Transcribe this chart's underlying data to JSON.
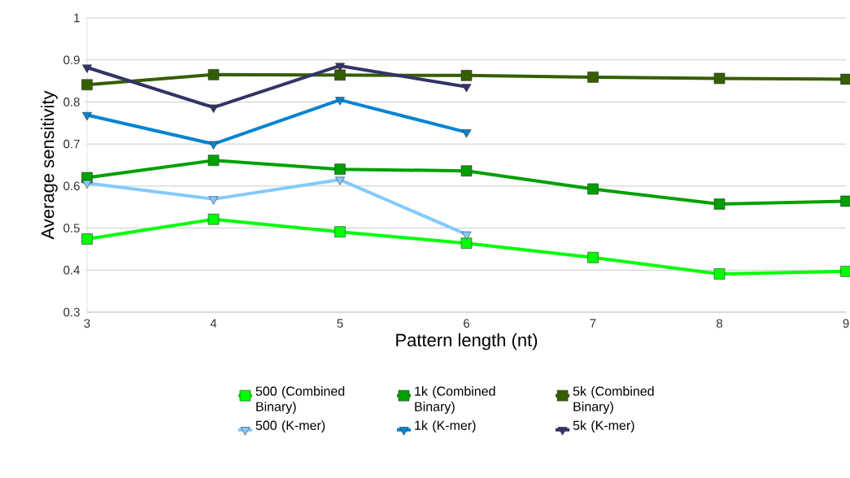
{
  "chart_data": {
    "type": "line",
    "xlabel": "Pattern length (nt)",
    "ylabel": "Average sensitivity",
    "x": [
      3,
      4,
      5,
      6,
      7,
      8,
      9
    ],
    "xlim": [
      3,
      9
    ],
    "xticks": [
      3,
      4,
      5,
      6,
      7,
      8,
      9
    ],
    "ylim": [
      0.3,
      1
    ],
    "yticks": [
      0.3,
      0.4,
      0.5,
      0.6,
      0.7,
      0.8,
      0.9,
      1
    ],
    "grid": "y",
    "legend": "bottom",
    "series": [
      {
        "name": "500 (Combined Binary)",
        "color": "#00ff00",
        "marker": "square",
        "values": [
          0.474,
          0.521,
          0.491,
          0.464,
          0.43,
          0.391,
          0.397
        ]
      },
      {
        "name": "1k (Combined Binary)",
        "color": "#00a000",
        "marker": "square",
        "values": [
          0.62,
          0.661,
          0.64,
          0.636,
          0.593,
          0.557,
          0.564
        ]
      },
      {
        "name": "5k (Combined Binary)",
        "color": "#355e00",
        "marker": "square",
        "values": [
          0.841,
          0.865,
          0.864,
          0.863,
          0.859,
          0.856,
          0.854
        ]
      },
      {
        "name": "500 (K-mer)",
        "color": "#83caff",
        "marker": "triangle",
        "values": [
          0.607,
          0.569,
          0.615,
          0.485,
          null,
          null,
          null
        ]
      },
      {
        "name": "1k (K-mer)",
        "color": "#0084d1",
        "marker": "triangle",
        "values": [
          0.769,
          0.7,
          0.805,
          0.728,
          null,
          null,
          null
        ]
      },
      {
        "name": "5k (K-mer)",
        "color": "#333366",
        "marker": "triangle",
        "values": [
          0.882,
          0.787,
          0.886,
          0.836,
          null,
          null,
          null
        ]
      }
    ]
  }
}
